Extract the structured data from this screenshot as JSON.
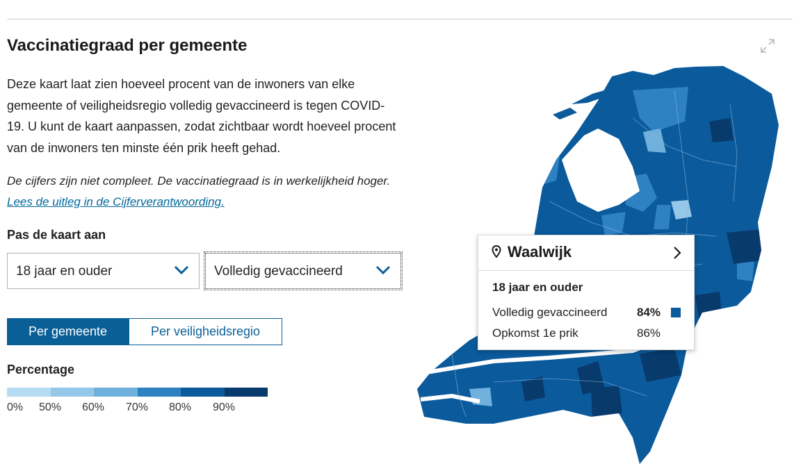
{
  "title": "Vaccinatiegraad per gemeente",
  "intro": "Deze kaart laat zien hoeveel procent van de inwoners van elke gemeente of veiligheidsregio volledig gevaccineerd is tegen COVID-19. U kunt de kaart aanpassen, zodat zichtbaar wordt hoeveel procent van de inwoners ten minste één prik heeft gehad.",
  "note": {
    "text": "De cijfers zijn niet compleet. De vaccinatiegraad is in werkelijkheid hoger. ",
    "link": "Lees de uitleg in de Cijferverantwoording."
  },
  "controls": {
    "label": "Pas de kaart aan",
    "age_select": "18 jaar en ouder",
    "status_select": "Volledig gevaccineerd",
    "toggle": [
      "Per gemeente",
      "Per veiligheidsregio"
    ]
  },
  "legend": {
    "title": "Percentage",
    "colors": [
      "#b5dcf3",
      "#95c8e8",
      "#6fb0dc",
      "#2f82c2",
      "#0b5a9c",
      "#083a6b"
    ],
    "ticks": [
      "0%",
      "50%",
      "60%",
      "70%",
      "80%",
      "90%"
    ]
  },
  "tooltip": {
    "municipality": "Waalwijk",
    "subtitle": "18 jaar en ouder",
    "rows": [
      {
        "label": "Volledig gevaccineerd",
        "value": "84%"
      },
      {
        "label": "Opkomst 1e prik",
        "value": "86%"
      }
    ],
    "swatch_color": "#0b5a9c"
  },
  "icons": {
    "expand": "expand-icon",
    "pin": "location-pin-icon",
    "arrow": "chevron-right-icon",
    "chevron": "chevron-down-icon"
  }
}
